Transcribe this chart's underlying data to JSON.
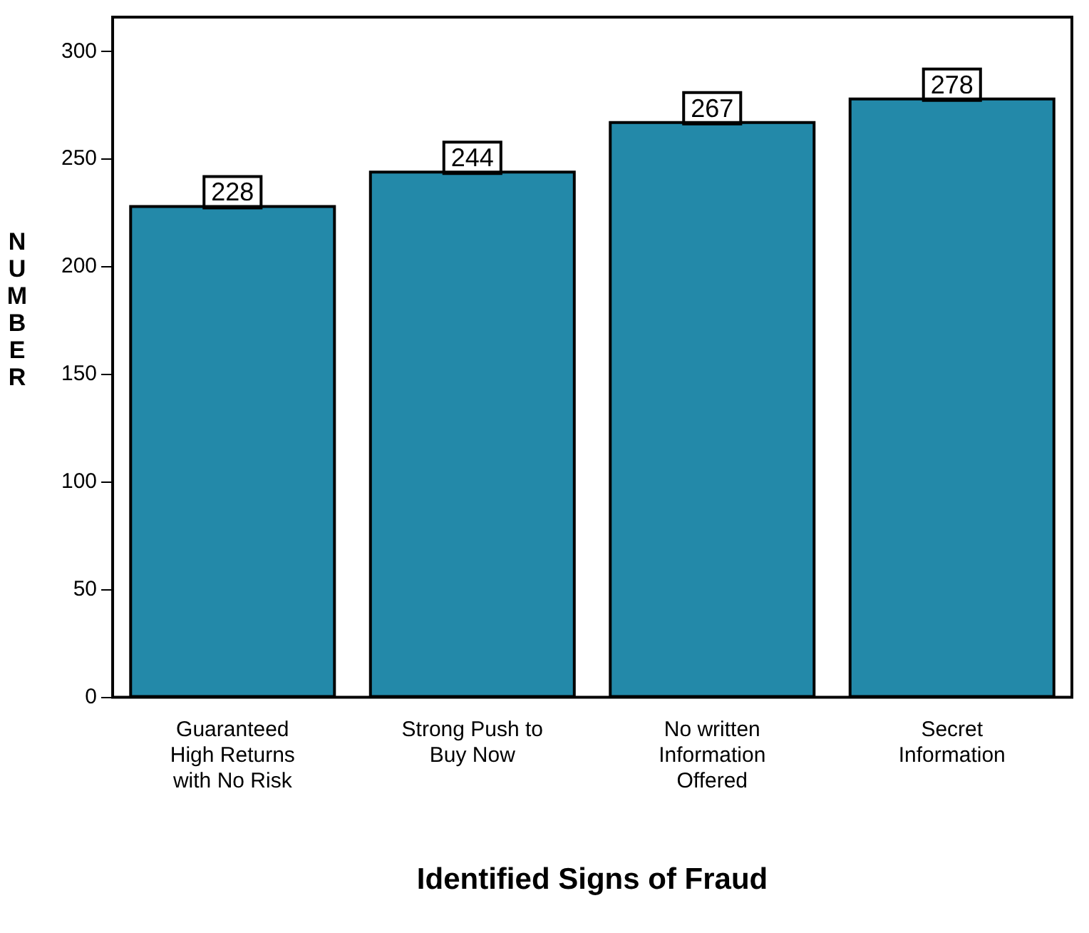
{
  "chart_data": {
    "type": "bar",
    "xlabel": "Identified Signs of Fraud",
    "ylabel": "NUMBER",
    "categories": [
      "Guaranteed High Returns with No Risk",
      "Strong Push to Buy Now",
      "No written Information Offered",
      "Secret Information"
    ],
    "values": [
      228,
      244,
      267,
      278
    ],
    "color": "#2389a9",
    "ylim": [
      0,
      316
    ],
    "yticks": [
      0,
      50,
      100,
      150,
      200,
      250,
      300
    ],
    "grid": false,
    "legend": false,
    "data_labels": true
  }
}
